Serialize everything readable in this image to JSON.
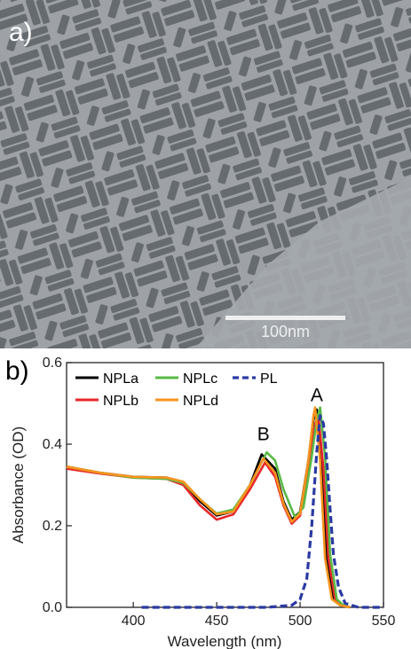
{
  "panel_a": {
    "label": "a)",
    "scale_bar_text": "100nm"
  },
  "panel_b": {
    "label": "b)"
  },
  "chart_data": {
    "type": "line",
    "xlabel": "Wavelength (nm)",
    "ylabel": "Absorbance (OD)",
    "xlim": [
      360,
      550
    ],
    "ylim": [
      0.0,
      0.6
    ],
    "xticks": [
      400,
      450,
      500,
      550
    ],
    "yticks": [
      0.0,
      0.2,
      0.4,
      0.6
    ],
    "legend_placement": "top-left",
    "annotations": [
      {
        "text": "A",
        "x": 510,
        "y": 0.505
      },
      {
        "text": "B",
        "x": 478,
        "y": 0.41
      }
    ],
    "series": [
      {
        "name": "NPLa",
        "color": "#000000",
        "style": "solid",
        "x": [
          360,
          380,
          400,
          420,
          430,
          440,
          450,
          460,
          470,
          477,
          485,
          490,
          495,
          500,
          505,
          508,
          510,
          513,
          516,
          520,
          525,
          530
        ],
        "y": [
          0.345,
          0.33,
          0.32,
          0.318,
          0.305,
          0.26,
          0.225,
          0.235,
          0.3,
          0.375,
          0.34,
          0.26,
          0.215,
          0.235,
          0.36,
          0.46,
          0.485,
          0.35,
          0.12,
          0.02,
          0.005,
          0.0
        ]
      },
      {
        "name": "NPLb",
        "color": "#e8272a",
        "style": "solid",
        "x": [
          360,
          380,
          400,
          420,
          430,
          440,
          450,
          460,
          470,
          479,
          485,
          490,
          495,
          500,
          505,
          509,
          511,
          514,
          517,
          521,
          525,
          530
        ],
        "y": [
          0.34,
          0.328,
          0.318,
          0.315,
          0.3,
          0.25,
          0.215,
          0.228,
          0.29,
          0.355,
          0.32,
          0.25,
          0.205,
          0.225,
          0.35,
          0.45,
          0.47,
          0.34,
          0.12,
          0.02,
          0.005,
          0.0
        ]
      },
      {
        "name": "NPLc",
        "color": "#5ab946",
        "style": "solid",
        "x": [
          360,
          380,
          400,
          420,
          430,
          440,
          450,
          460,
          470,
          480,
          485,
          490,
          497,
          502,
          507,
          510,
          512,
          515,
          518,
          522,
          526,
          530
        ],
        "y": [
          0.345,
          0.33,
          0.318,
          0.315,
          0.305,
          0.265,
          0.23,
          0.24,
          0.3,
          0.38,
          0.36,
          0.29,
          0.22,
          0.245,
          0.37,
          0.46,
          0.49,
          0.37,
          0.13,
          0.02,
          0.005,
          0.0
        ]
      },
      {
        "name": "NPLd",
        "color": "#f7941d",
        "style": "solid",
        "x": [
          360,
          380,
          400,
          420,
          430,
          440,
          450,
          460,
          470,
          478,
          485,
          490,
          495,
          500,
          505,
          508,
          509,
          512,
          515,
          519,
          524,
          530
        ],
        "y": [
          0.345,
          0.33,
          0.32,
          0.318,
          0.308,
          0.265,
          0.228,
          0.235,
          0.3,
          0.365,
          0.33,
          0.255,
          0.21,
          0.23,
          0.36,
          0.47,
          0.49,
          0.36,
          0.12,
          0.02,
          0.005,
          0.0
        ]
      },
      {
        "name": "PL",
        "color": "#2b3aa3",
        "style": "dashed",
        "x": [
          405,
          440,
          480,
          495,
          500,
          504,
          507,
          510,
          512,
          514,
          516,
          518,
          520,
          523,
          527,
          535,
          550
        ],
        "y": [
          0.0,
          0.0,
          0.0,
          0.005,
          0.02,
          0.07,
          0.2,
          0.38,
          0.47,
          0.45,
          0.36,
          0.24,
          0.13,
          0.05,
          0.01,
          0.0,
          0.0
        ]
      }
    ]
  }
}
